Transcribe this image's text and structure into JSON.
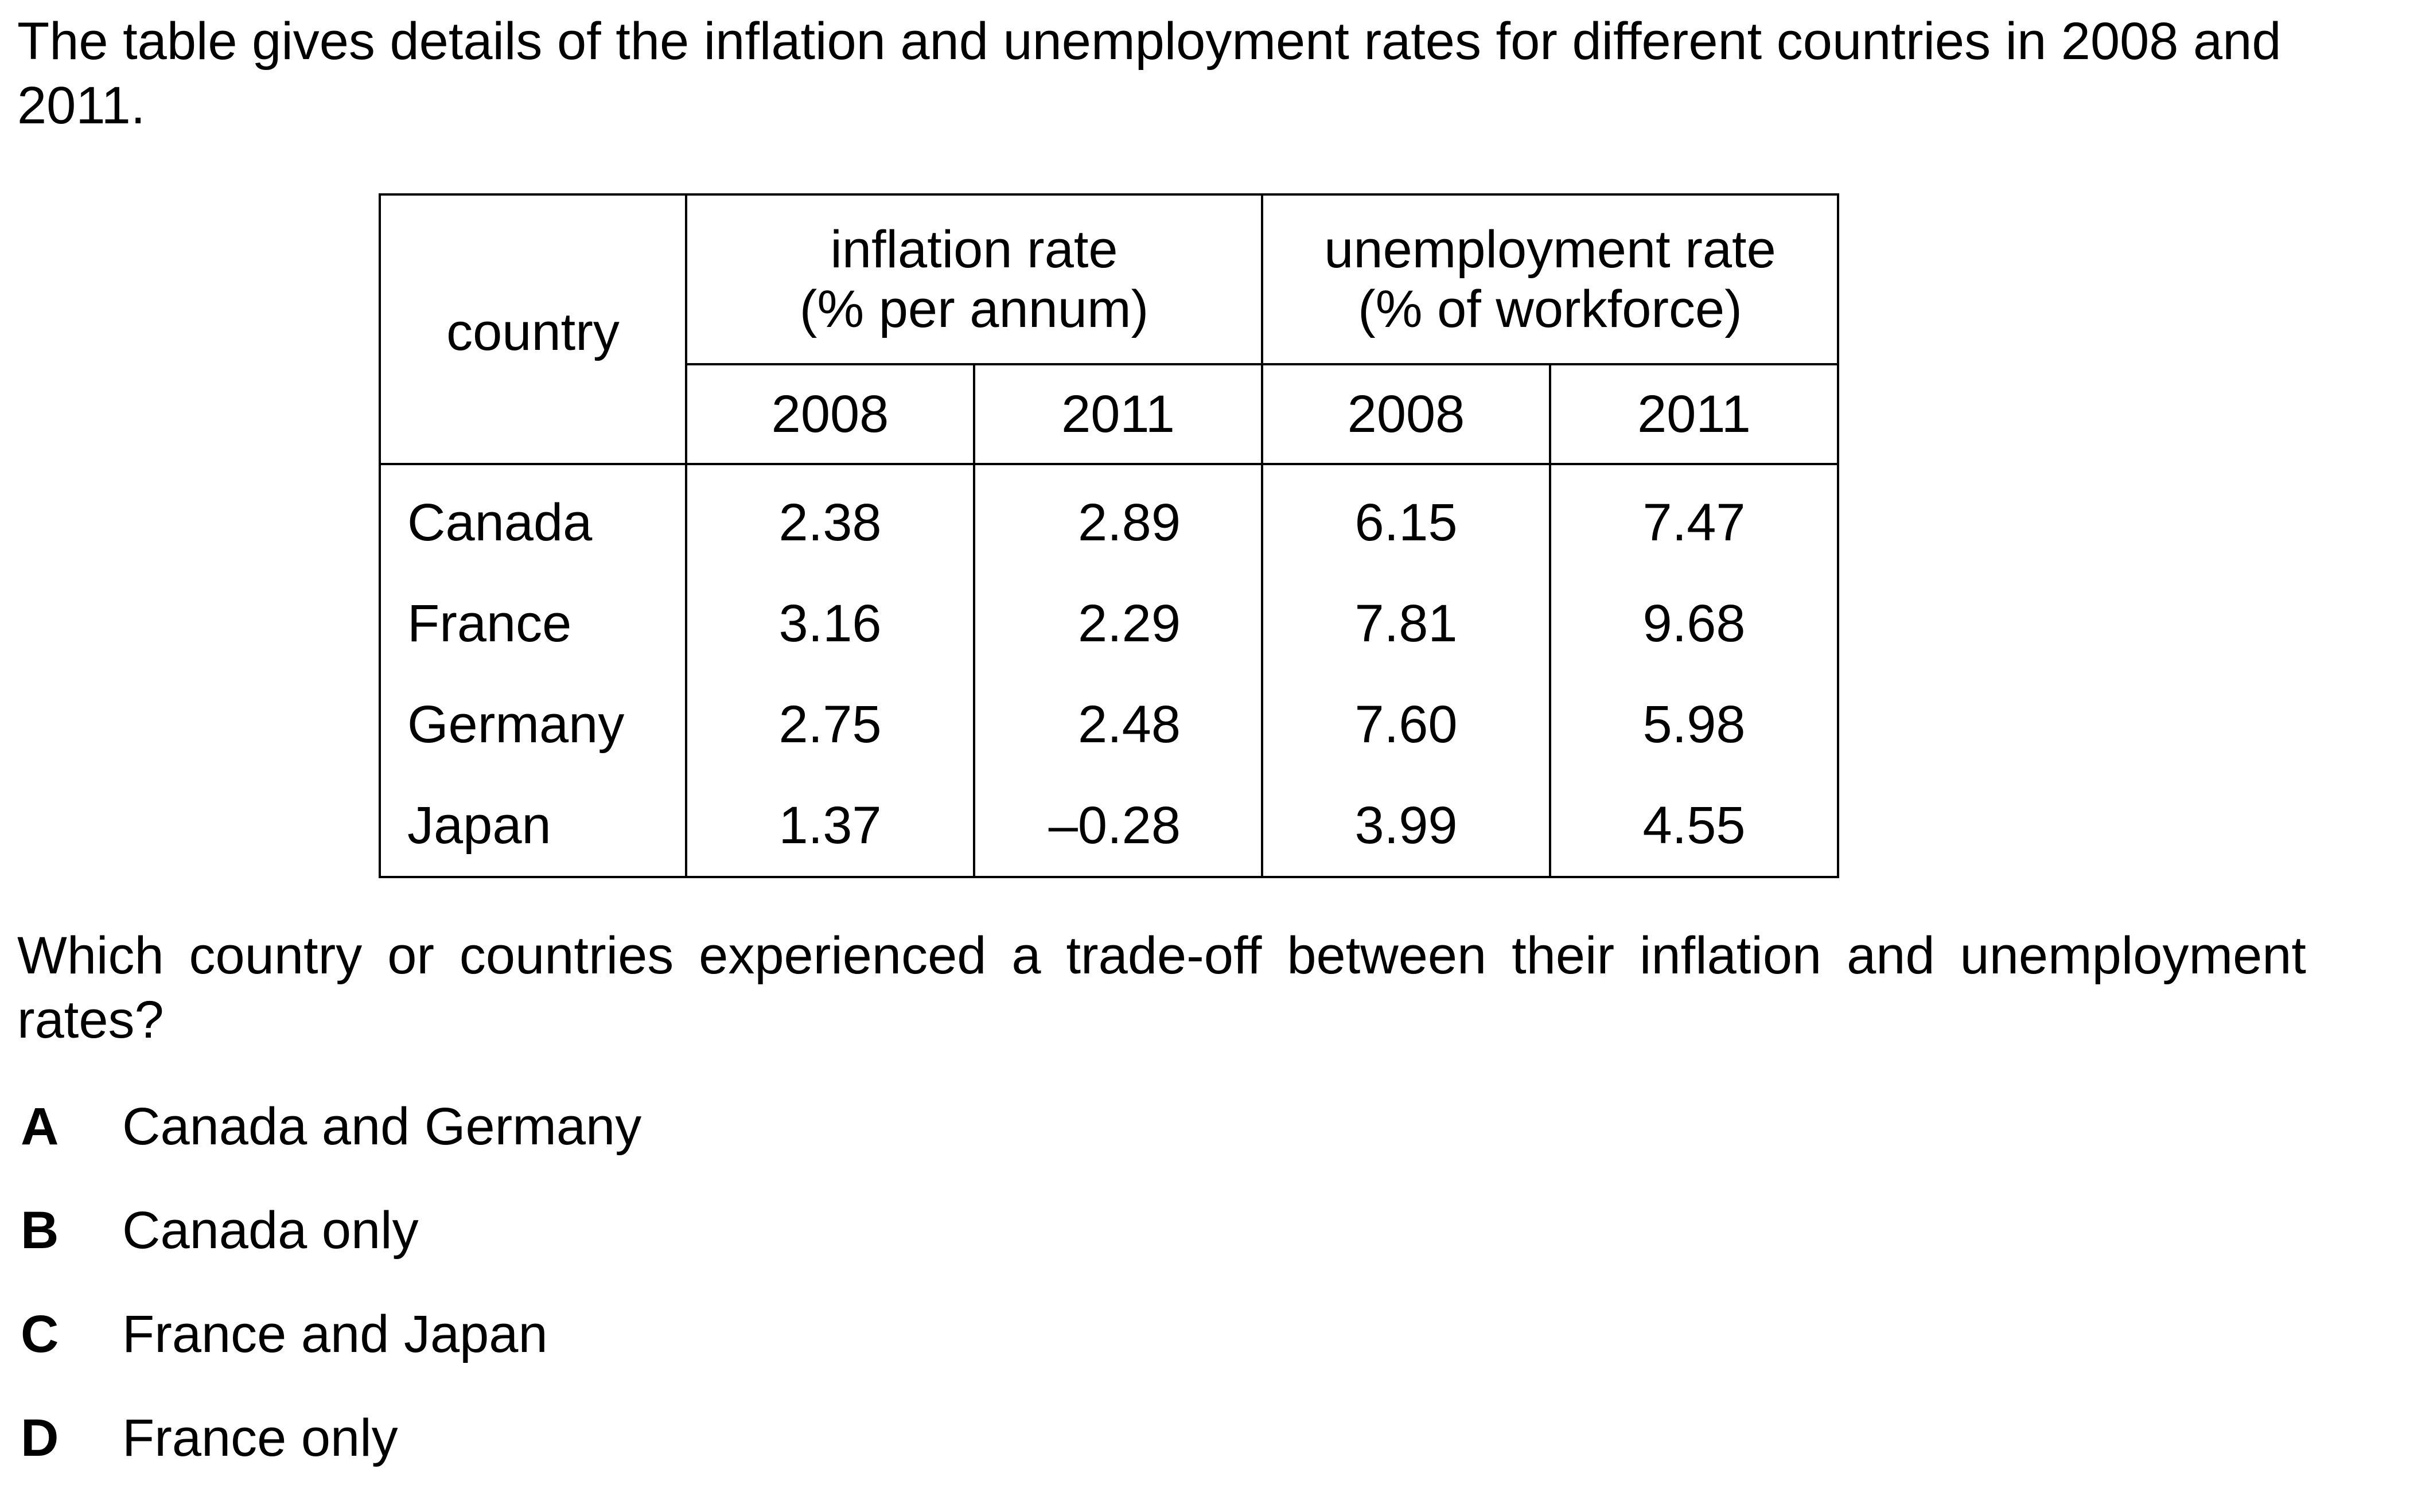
{
  "intro_text": "The table gives details of the inflation and unemployment rates for different countries in 2008 and 2011.",
  "table": {
    "country_header": "country",
    "inflation_header_line1": "inflation rate",
    "inflation_header_line2": "(% per annum)",
    "unemployment_header_line1": "unemployment rate",
    "unemployment_header_line2": "(% of workforce)",
    "years": [
      "2008",
      "2011",
      "2008",
      "2011"
    ],
    "rows": [
      {
        "country": "Canada",
        "infl_2008": "2.38",
        "infl_2011": "2.89",
        "unemp_2008": "6.15",
        "unemp_2011": "7.47"
      },
      {
        "country": "France",
        "infl_2008": "3.16",
        "infl_2011": "2.29",
        "unemp_2008": "7.81",
        "unemp_2011": "9.68"
      },
      {
        "country": "Germany",
        "infl_2008": "2.75",
        "infl_2011": "2.48",
        "unemp_2008": "7.60",
        "unemp_2011": "5.98"
      },
      {
        "country": "Japan",
        "infl_2008": "1.37",
        "infl_2011": "–0.28",
        "unemp_2008": "3.99",
        "unemp_2011": "4.55"
      }
    ]
  },
  "question_text": "Which country or countries experienced a trade-off between their inflation and unemployment rates?",
  "options": [
    {
      "letter": "A",
      "text": "Canada and Germany"
    },
    {
      "letter": "B",
      "text": "Canada only"
    },
    {
      "letter": "C",
      "text": "France and Japan"
    },
    {
      "letter": "D",
      "text": "France only"
    }
  ]
}
